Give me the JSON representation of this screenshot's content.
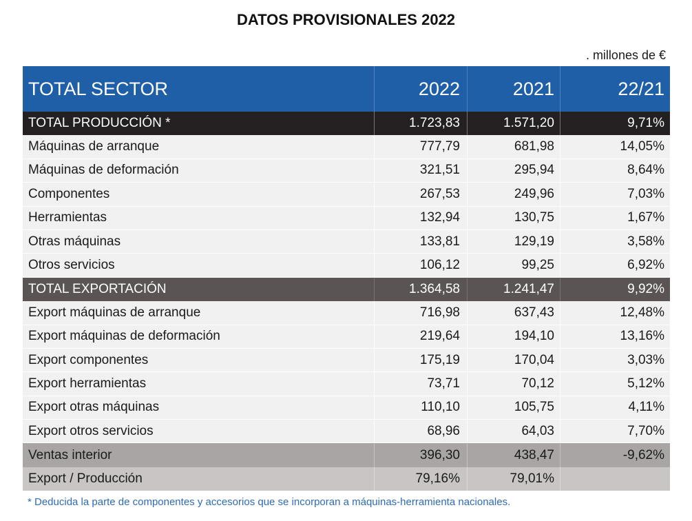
{
  "title": "DATOS PROVISIONALES 2022",
  "units": ". millones de €",
  "header": {
    "label": "TOTAL SECTOR",
    "col1": "2022",
    "col2": "2021",
    "col3": "22/21"
  },
  "rows": [
    {
      "label": "TOTAL PRODUCCIÓN *",
      "v2022": "1.723,83",
      "v2021": "1.571,20",
      "ratio": "9,71%"
    },
    {
      "label": "Máquinas de arranque",
      "v2022": "777,79",
      "v2021": "681,98",
      "ratio": "14,05%"
    },
    {
      "label": "Máquinas de deformación",
      "v2022": "321,51",
      "v2021": "295,94",
      "ratio": "8,64%"
    },
    {
      "label": "Componentes",
      "v2022": "267,53",
      "v2021": "249,96",
      "ratio": "7,03%"
    },
    {
      "label": "Herramientas",
      "v2022": "132,94",
      "v2021": "130,75",
      "ratio": "1,67%"
    },
    {
      "label": "Otras máquinas",
      "v2022": "133,81",
      "v2021": "129,19",
      "ratio": "3,58%"
    },
    {
      "label": "Otros servicios",
      "v2022": "106,12",
      "v2021": "99,25",
      "ratio": "6,92%"
    },
    {
      "label": "TOTAL EXPORTACIÓN",
      "v2022": "1.364,58",
      "v2021": "1.241,47",
      "ratio": "9,92%"
    },
    {
      "label": "Export máquinas de arranque",
      "v2022": "716,98",
      "v2021": "637,43",
      "ratio": "12,48%"
    },
    {
      "label": "Export máquinas de deformación",
      "v2022": "219,64",
      "v2021": "194,10",
      "ratio": "13,16%"
    },
    {
      "label": "Export componentes",
      "v2022": "175,19",
      "v2021": "170,04",
      "ratio": "3,03%"
    },
    {
      "label": "Export herramientas",
      "v2022": "73,71",
      "v2021": "70,12",
      "ratio": "5,12%"
    },
    {
      "label": "Export otras máquinas",
      "v2022": "110,10",
      "v2021": "105,75",
      "ratio": "4,11%"
    },
    {
      "label": "Export otros servicios",
      "v2022": "68,96",
      "v2021": "64,03",
      "ratio": "7,70%"
    },
    {
      "label": "Ventas interior",
      "v2022": "396,30",
      "v2021": "438,47",
      "ratio": "-9,62%"
    },
    {
      "label": "Export / Producción",
      "v2022": "79,16%",
      "v2021": "79,01%",
      "ratio": ""
    }
  ],
  "footnote": "* Deducida la parte de componentes y accesorios que se incorporan a máquinas-herramienta nacionales.",
  "colors": {
    "header_blue": "#1f5fa8",
    "total_production": "#241f20",
    "total_export": "#5b5455",
    "data_row": "#f1f1f1",
    "ventas_interior": "#a9a5a4",
    "export_produccion": "#c8c5c4",
    "footnote_blue": "#2d6bb8"
  }
}
